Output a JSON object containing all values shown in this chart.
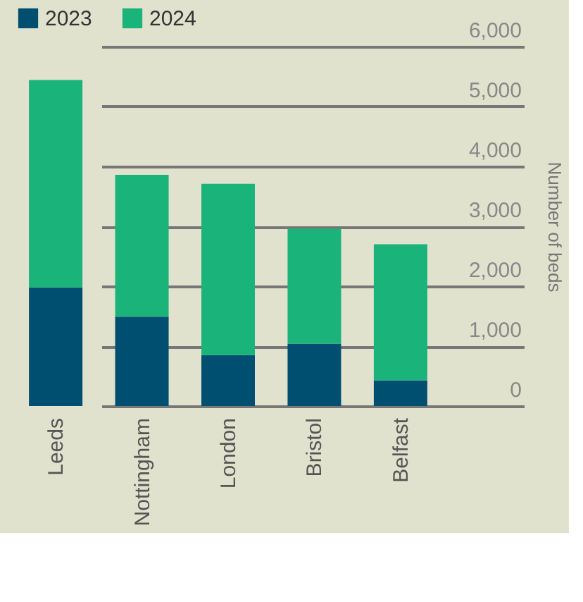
{
  "chart_data": {
    "type": "bar",
    "stacked": true,
    "categories": [
      "Leeds",
      "Nottingham",
      "London",
      "Bristol",
      "Belfast"
    ],
    "series": [
      {
        "name": "2023",
        "color": "#004f71",
        "values": [
          1980,
          1490,
          850,
          1040,
          430
        ]
      },
      {
        "name": "2024",
        "color": "#1ab37a",
        "values": [
          3460,
          2370,
          2860,
          1920,
          2270
        ]
      }
    ],
    "ylabel": "Number of beds",
    "ylim": [
      0,
      6000
    ],
    "yticks": [
      0,
      {
        "value": 1000,
        "label": "1,000"
      },
      {
        "value": 2000,
        "label": "2,000"
      },
      {
        "value": 3000,
        "label": "3,000"
      },
      {
        "value": 4000,
        "label": "4,000"
      },
      {
        "value": 5000,
        "label": "5,000"
      },
      {
        "value": 6000,
        "label": "6,000"
      }
    ],
    "grid": "y",
    "legend": "top left"
  }
}
